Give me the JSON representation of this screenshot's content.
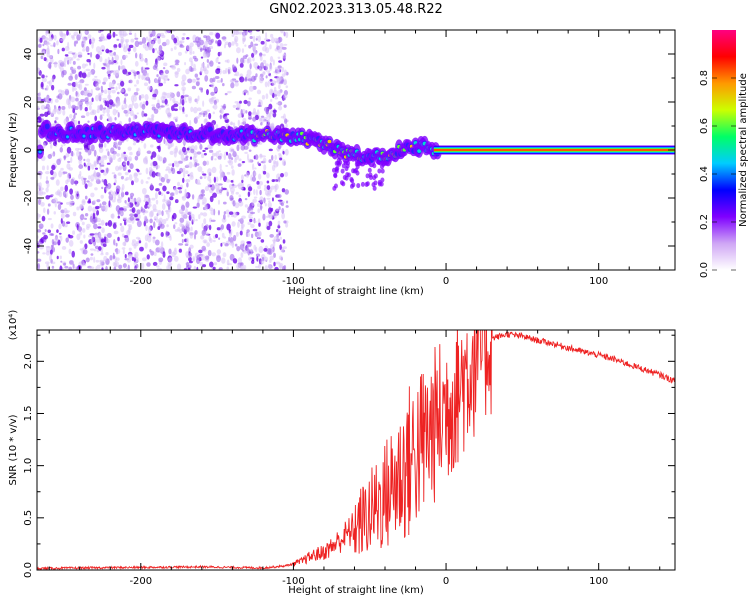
{
  "figure_title": "GN02.2023.313.05.48.R22",
  "chart_data": [
    {
      "type": "heatmap",
      "title": "",
      "xlabel": "Height of straight line (km)",
      "ylabel": "Frequency (Hz)",
      "xlim": [
        -268,
        150
      ],
      "ylim": [
        -50,
        50
      ],
      "xticks": [
        -200,
        -100,
        0,
        100
      ],
      "xtick_labels": [
        "-200",
        "-100",
        "0",
        "100"
      ],
      "yticks": [
        -40,
        -20,
        0,
        20,
        40
      ],
      "ytick_labels": [
        "-40",
        "-20",
        "0",
        "20",
        "40"
      ],
      "colorbar": {
        "label": "Normalized spectral amplitude",
        "range": [
          0,
          1
        ],
        "ticks": [
          0,
          0.2,
          0.4,
          0.6,
          0.8
        ],
        "tick_labels": [
          "0.0",
          "0.2",
          "0.4",
          "0.6",
          "0.8"
        ],
        "colors": [
          "#ffffff",
          "#cfa6f5",
          "#7f00ff",
          "#0000ff",
          "#00ccff",
          "#00ff66",
          "#ccff00",
          "#ff9900",
          "#ff0000",
          "#ff0080"
        ]
      },
      "ridge": {
        "description_x": [
          -265,
          -240,
          -200,
          -160,
          -130,
          -110,
          -95,
          -80,
          -70,
          -60,
          -50,
          -40,
          -30,
          -20,
          -15,
          -10,
          -5,
          0,
          50,
          150
        ],
        "frequency": [
          8,
          7,
          8,
          7,
          6,
          6,
          5,
          3,
          0,
          -2,
          -3,
          -2,
          0,
          1,
          2,
          0,
          0,
          0,
          0,
          0
        ]
      },
      "noise_region_x": [
        -268,
        -118
      ],
      "grid": false
    },
    {
      "type": "line",
      "title": "",
      "xlabel": "Height of straight line (km)",
      "ylabel": "SNR (10 * v/v)",
      "y_multiplier": "(x10⁴)",
      "xlim": [
        -268,
        150
      ],
      "ylim": [
        0,
        23000
      ],
      "xticks": [
        -200,
        -100,
        0,
        100
      ],
      "xtick_labels": [
        "-200",
        "-100",
        "0",
        "100"
      ],
      "yticks": [
        0,
        5000,
        10000,
        15000,
        20000
      ],
      "ytick_labels": [
        "0.0",
        "0.5",
        "1.0",
        "1.5",
        "2.0"
      ],
      "series": [
        {
          "color": "#ee2222",
          "x": [
            -268,
            -240,
            -200,
            -160,
            -120,
            -105,
            -95,
            -90,
            -85,
            -80,
            -75,
            -70,
            -65,
            -60,
            -55,
            -50,
            -45,
            -40,
            -35,
            -30,
            -25,
            -20,
            -15,
            -10,
            -5,
            0,
            5,
            10,
            15,
            20,
            25,
            30,
            40,
            50,
            60,
            70,
            80,
            90,
            100,
            110,
            120,
            130,
            140,
            150
          ],
          "values": [
            150,
            200,
            250,
            300,
            200,
            400,
            800,
            1200,
            1500,
            1700,
            2200,
            2800,
            3400,
            4000,
            4700,
            5400,
            6300,
            7100,
            8100,
            9100,
            10200,
            11300,
            12300,
            13300,
            14400,
            15500,
            16700,
            18000,
            19300,
            20600,
            21600,
            22200,
            22600,
            22400,
            22000,
            21700,
            21300,
            20900,
            20600,
            20200,
            19700,
            19200,
            18700,
            18100
          ]
        }
      ],
      "grid": false
    }
  ]
}
